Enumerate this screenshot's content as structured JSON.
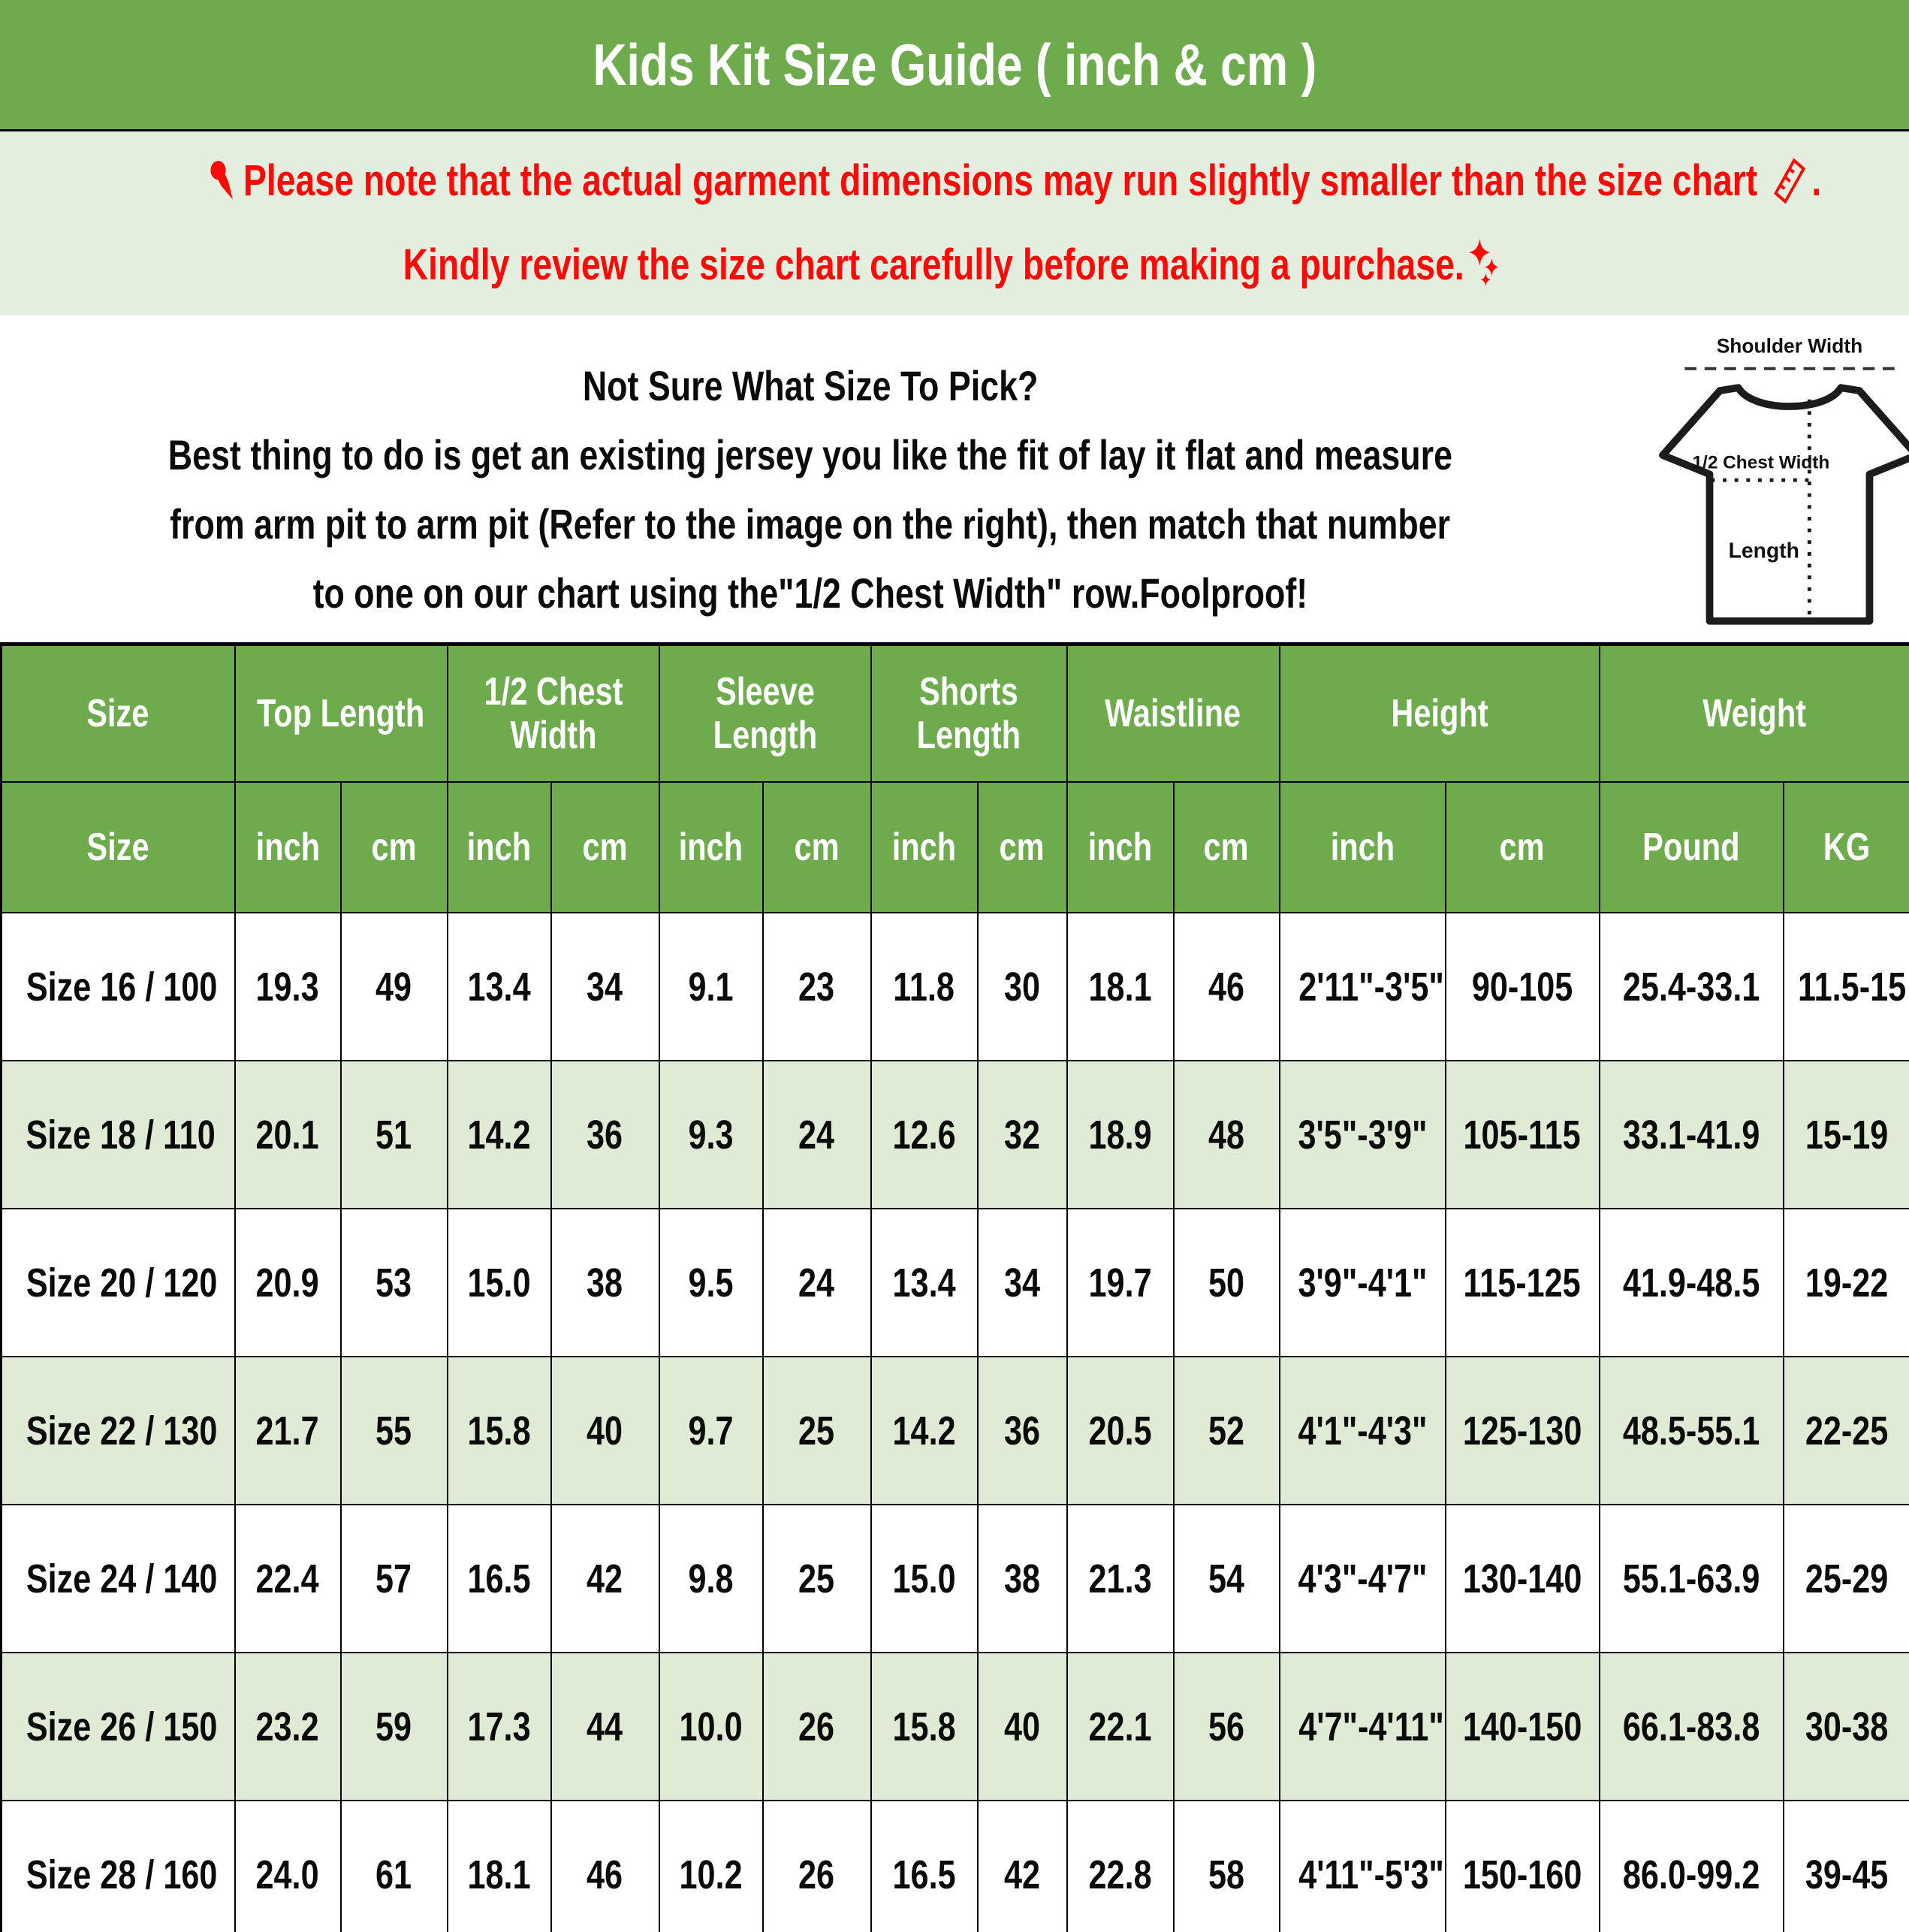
{
  "colors": {
    "header_green": "#6dab4c",
    "note_band_green": "#e4eede",
    "row_alt_green": "#e0ebd6",
    "notice_red": "#fb0a08",
    "text_black": "#0b0b0b",
    "header_text_white": "#ffffff"
  },
  "banner": {
    "title": "Kids Kit Size Guide ( inch & cm )"
  },
  "notice": {
    "pushpin_icon": "pushpin-icon",
    "line1": "Please note that the actual garment dimensions may run slightly smaller than the size chart",
    "ruler_icon": "ruler-icon",
    "line1_end": ".",
    "line2": "Kindly review the size chart carefully before making a purchase.",
    "sparkles_icon": "sparkles-icon"
  },
  "intro": {
    "heading": "Not Sure What Size To Pick?",
    "line1": "Best thing to do is get an existing jersey you like the fit of lay it flat and measure",
    "line2": "from arm pit to arm pit (Refer to the image on the right), then match that number",
    "line3": "to one on our chart using the\"1/2 Chest Width\" row.Foolproof!"
  },
  "diagram": {
    "shoulder_width_label": "Shoulder Width",
    "half_chest_width_label": "1/2 Chest Width",
    "length_label": "Length"
  },
  "table": {
    "col_groups": [
      {
        "label": "Size",
        "span": 1
      },
      {
        "label": "Top Length",
        "span": 2
      },
      {
        "label": "1/2 Chest Width",
        "span": 2
      },
      {
        "label": "Sleeve Length",
        "span": 2
      },
      {
        "label": "Shorts Length",
        "span": 2
      },
      {
        "label": "Waistline",
        "span": 2
      },
      {
        "label": "Height",
        "span": 2
      },
      {
        "label": "Weight",
        "span": 2
      }
    ],
    "sub_headers": [
      "Size",
      "inch",
      "cm",
      "inch",
      "cm",
      "inch",
      "cm",
      "inch",
      "cm",
      "inch",
      "cm",
      "inch",
      "cm",
      "Pound",
      "KG"
    ],
    "rows": [
      {
        "size": "Size 16 / 100",
        "values": [
          "19.3",
          "49",
          "13.4",
          "34",
          "9.1",
          "23",
          "11.8",
          "30",
          "18.1",
          "46",
          "2'11\"-3'5\"",
          "90-105",
          "25.4-33.1",
          "11.5-15"
        ]
      },
      {
        "size": "Size 18 / 110",
        "values": [
          "20.1",
          "51",
          "14.2",
          "36",
          "9.3",
          "24",
          "12.6",
          "32",
          "18.9",
          "48",
          "3'5\"-3'9\"",
          "105-115",
          "33.1-41.9",
          "15-19"
        ]
      },
      {
        "size": "Size 20 / 120",
        "values": [
          "20.9",
          "53",
          "15.0",
          "38",
          "9.5",
          "24",
          "13.4",
          "34",
          "19.7",
          "50",
          "3'9\"-4'1\"",
          "115-125",
          "41.9-48.5",
          "19-22"
        ]
      },
      {
        "size": "Size 22 / 130",
        "values": [
          "21.7",
          "55",
          "15.8",
          "40",
          "9.7",
          "25",
          "14.2",
          "36",
          "20.5",
          "52",
          "4'1\"-4'3\"",
          "125-130",
          "48.5-55.1",
          "22-25"
        ]
      },
      {
        "size": "Size 24 / 140",
        "values": [
          "22.4",
          "57",
          "16.5",
          "42",
          "9.8",
          "25",
          "15.0",
          "38",
          "21.3",
          "54",
          "4'3\"-4'7\"",
          "130-140",
          "55.1-63.9",
          "25-29"
        ]
      },
      {
        "size": "Size 26 / 150",
        "values": [
          "23.2",
          "59",
          "17.3",
          "44",
          "10.0",
          "26",
          "15.8",
          "40",
          "22.1",
          "56",
          "4'7\"-4'11\"",
          "140-150",
          "66.1-83.8",
          "30-38"
        ]
      },
      {
        "size": "Size 28 / 160",
        "values": [
          "24.0",
          "61",
          "18.1",
          "46",
          "10.2",
          "26",
          "16.5",
          "42",
          "22.8",
          "58",
          "4'11\"-5'3\"",
          "150-160",
          "86.0-99.2",
          "39-45"
        ]
      }
    ]
  }
}
